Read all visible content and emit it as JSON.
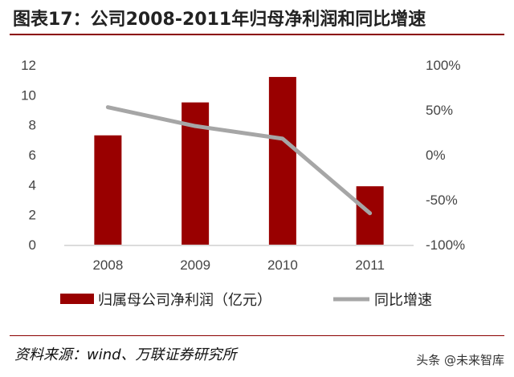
{
  "title": "图表17：公司2008-2011年归母净利润和同比增速",
  "source": "资料来源：wind、万联证券研究所",
  "watermark": "头条 @未来智库",
  "chart_data": {
    "type": "bar+line",
    "categories": [
      "2008",
      "2009",
      "2010",
      "2011"
    ],
    "series": [
      {
        "name": "归属母公司净利润（亿元）",
        "type": "bar",
        "axis": "left",
        "color": "#990000",
        "values": [
          7.3,
          9.5,
          11.2,
          3.9
        ]
      },
      {
        "name": "同比增速",
        "type": "line",
        "axis": "right",
        "color": "#a6a6a6",
        "values": [
          53,
          32,
          18,
          -65
        ]
      }
    ],
    "y_left": {
      "range": [
        0,
        12
      ],
      "ticks": [
        "0",
        "2",
        "4",
        "6",
        "8",
        "10",
        "12"
      ]
    },
    "y_right": {
      "range": [
        -100,
        100
      ],
      "ticks": [
        "-100%",
        "-50%",
        "0%",
        "50%",
        "100%"
      ]
    },
    "grid": false,
    "legend": "bottom"
  }
}
